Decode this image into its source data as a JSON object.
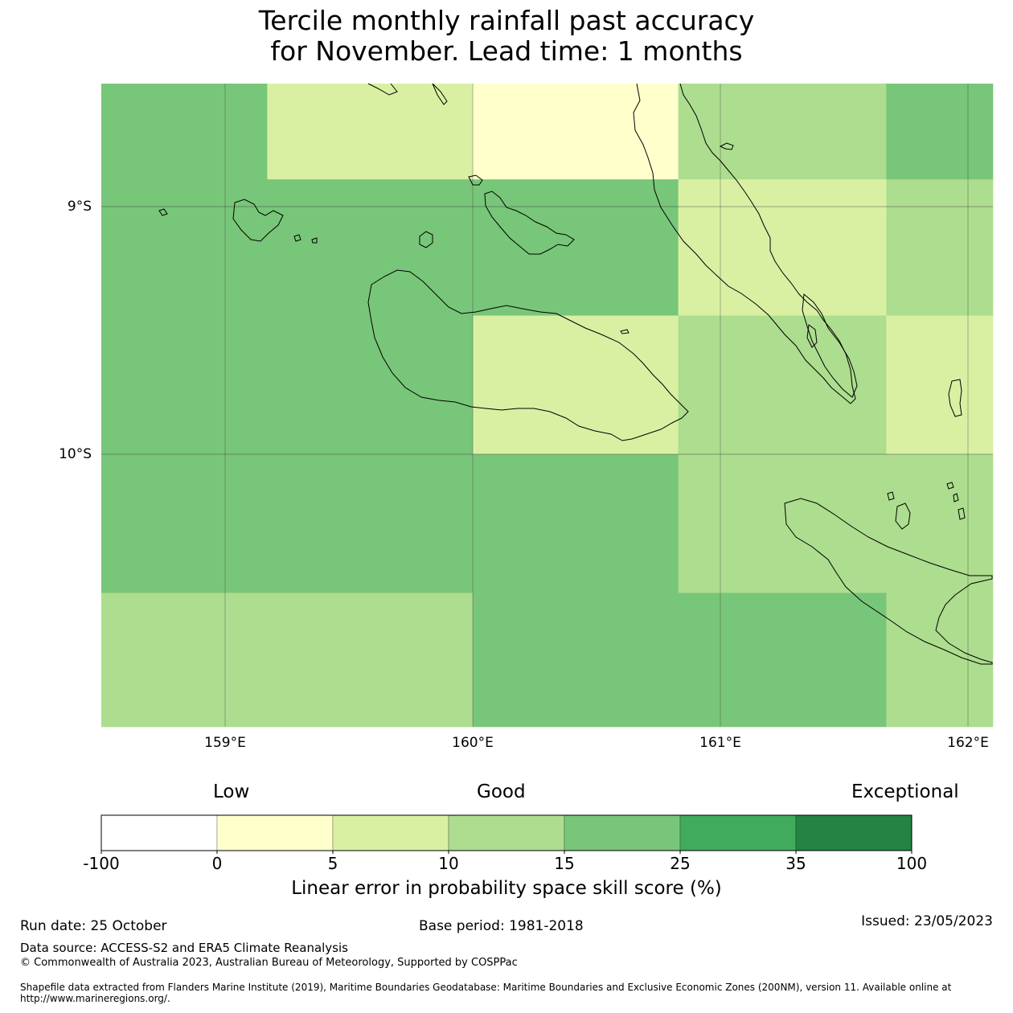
{
  "title": {
    "line1": "Tercile monthly rainfall past accuracy",
    "line2": "for November. Lead time: 1 months"
  },
  "map": {
    "lat_labels": [
      "9°S",
      "10°S"
    ],
    "lon_labels": [
      "159°E",
      "160°E",
      "161°E",
      "162°E"
    ],
    "lon_range": [
      158.5,
      162.1
    ],
    "lat_range": [
      -8.5,
      -11.1
    ],
    "grid_lons": [
      159,
      160,
      161,
      162
    ],
    "grid_lats": [
      -9,
      -10
    ],
    "cells": [
      {
        "lon": [
          158.5,
          159.17
        ],
        "lat": [
          -8.5,
          -8.89
        ],
        "score": 20
      },
      {
        "lon": [
          159.17,
          160.0
        ],
        "lat": [
          -8.5,
          -8.89
        ],
        "score": 8
      },
      {
        "lon": [
          160.0,
          160.83
        ],
        "lat": [
          -8.5,
          -8.89
        ],
        "score": 3
      },
      {
        "lon": [
          160.83,
          161.67
        ],
        "lat": [
          -8.5,
          -8.89
        ],
        "score": 12
      },
      {
        "lon": [
          161.67,
          162.1
        ],
        "lat": [
          -8.5,
          -8.89
        ],
        "score": 20
      },
      {
        "lon": [
          158.5,
          160.0
        ],
        "lat": [
          -8.89,
          -9.44
        ],
        "score": 20
      },
      {
        "lon": [
          160.0,
          160.83
        ],
        "lat": [
          -8.89,
          -9.44
        ],
        "score": 20
      },
      {
        "lon": [
          160.83,
          161.67
        ],
        "lat": [
          -8.89,
          -9.44
        ],
        "score": 8
      },
      {
        "lon": [
          161.67,
          162.1
        ],
        "lat": [
          -8.89,
          -9.44
        ],
        "score": 12
      },
      {
        "lon": [
          158.5,
          160.0
        ],
        "lat": [
          -9.44,
          -10.0
        ],
        "score": 20
      },
      {
        "lon": [
          160.0,
          160.83
        ],
        "lat": [
          -9.44,
          -10.0
        ],
        "score": 8
      },
      {
        "lon": [
          160.83,
          161.67
        ],
        "lat": [
          -9.44,
          -10.0
        ],
        "score": 12
      },
      {
        "lon": [
          161.67,
          162.1
        ],
        "lat": [
          -9.44,
          -10.0
        ],
        "score": 8
      },
      {
        "lon": [
          158.5,
          160.0
        ],
        "lat": [
          -10.0,
          -10.56
        ],
        "score": 20
      },
      {
        "lon": [
          160.0,
          160.83
        ],
        "lat": [
          -10.0,
          -10.56
        ],
        "score": 20
      },
      {
        "lon": [
          160.83,
          162.1
        ],
        "lat": [
          -10.0,
          -10.56
        ],
        "score": 12
      },
      {
        "lon": [
          158.5,
          160.0
        ],
        "lat": [
          -10.56,
          -11.1
        ],
        "score": 12
      },
      {
        "lon": [
          160.0,
          161.67
        ],
        "lat": [
          -10.56,
          -11.1
        ],
        "score": 20
      },
      {
        "lon": [
          161.67,
          162.1
        ],
        "lat": [
          -10.56,
          -11.1
        ],
        "score": 12
      }
    ]
  },
  "legend": {
    "low": "Low",
    "good": "Good",
    "exceptional": "Exceptional",
    "bins": [
      {
        "from": "-100",
        "to": "0",
        "color": "#ffffff"
      },
      {
        "from": "0",
        "to": "5",
        "color": "#ffffcc"
      },
      {
        "from": "5",
        "to": "10",
        "color": "#d9f0a3"
      },
      {
        "from": "10",
        "to": "15",
        "color": "#addd8e"
      },
      {
        "from": "15",
        "to": "25",
        "color": "#78c679"
      },
      {
        "from": "25",
        "to": "35",
        "color": "#41ab5d"
      },
      {
        "from": "35",
        "to": "100",
        "color": "#238443"
      }
    ],
    "ticks": [
      "-100",
      "0",
      "5",
      "10",
      "15",
      "25",
      "35",
      "100"
    ],
    "title": "Linear error in probability space skill score (%)"
  },
  "footer": {
    "run_date": "Run date: 25 October",
    "base_period": "Base period: 1981-2018",
    "issued": "Issued: 23/05/2023",
    "data_source": "Data source: ACCESS-S2 and ERA5 Climate Reanalysis",
    "copyright": "© Commonwealth of Australia 2023, Australian Bureau of Meteorology, Supported by COSPPac",
    "shapefile": "Shapefile data extracted from Flanders Marine Institute (2019), Maritime Boundaries Geodatabase: Maritime Boundaries and Exclusive Economic Zones (200NM), version 11. Available online at http://www.marineregions.org/."
  }
}
